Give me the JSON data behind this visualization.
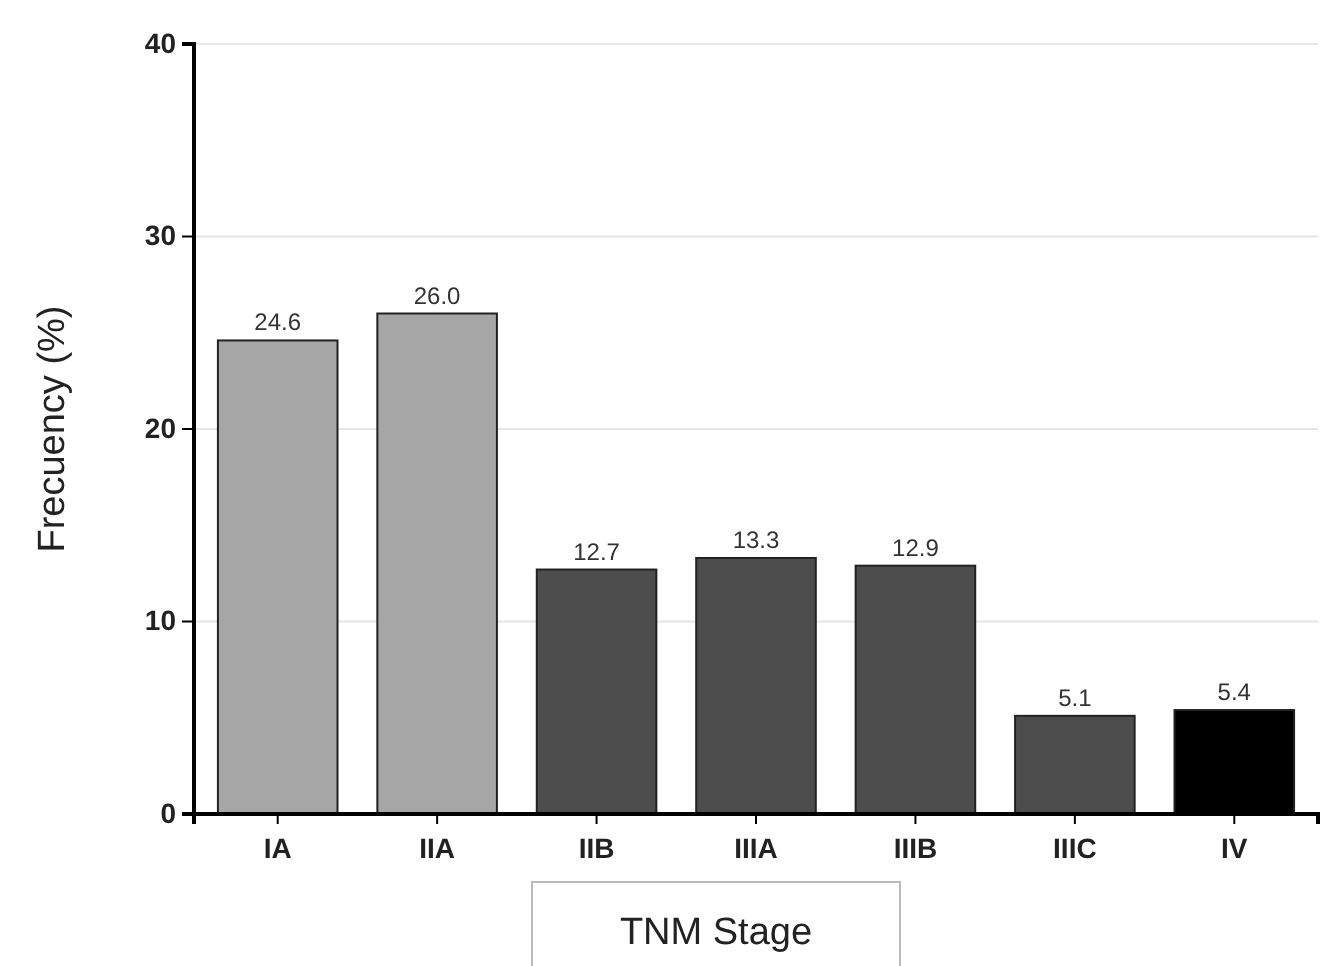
{
  "chart_data": {
    "type": "bar",
    "xlabel": "TNM Stage",
    "ylabel": "Frecuency (%)",
    "categories": [
      "IA",
      "IIA",
      "IIB",
      "IIIA",
      "IIIB",
      "IIIC",
      "IV"
    ],
    "values": [
      24.6,
      26.0,
      12.7,
      13.3,
      12.9,
      5.1,
      5.4
    ],
    "colors": [
      "#a6a6a6",
      "#a6a6a6",
      "#4d4d4d",
      "#4d4d4d",
      "#4d4d4d",
      "#4d4d4d",
      "#000000"
    ],
    "value_labels": [
      "24.6",
      "26.0",
      "12.7",
      "13.3",
      "12.9",
      "5.1",
      "5.4"
    ],
    "ylim": [
      0,
      40
    ],
    "yticks": [
      0,
      10,
      20,
      30,
      40
    ],
    "grid": "y"
  }
}
